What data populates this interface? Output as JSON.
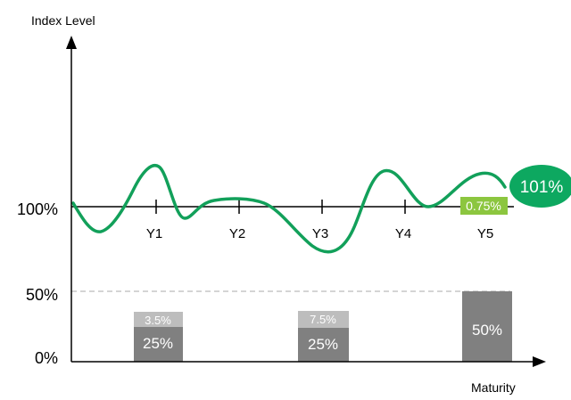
{
  "y_axis_label": "Index Level",
  "x_axis_label": "Maturity",
  "y_ticks": [
    "100%",
    "50%",
    "0%"
  ],
  "years": [
    "Y1",
    "Y2",
    "Y3",
    "Y4",
    "Y5"
  ],
  "bars": [
    {
      "year": "Y1",
      "base_label": "25%",
      "top_label": "3.5%"
    },
    {
      "year": "Y3",
      "base_label": "25%",
      "top_label": "7.5%"
    },
    {
      "year": "Y5",
      "base_label": "50%"
    }
  ],
  "coupon_badge": "0.75%",
  "final_badge": "101%",
  "colors": {
    "curve": "#12A05A",
    "final_badge": "#0DA860",
    "coupon_badge": "#8CC63F",
    "bar_base": "#808080",
    "bar_top": "#BDBDBD",
    "axis": "#000000",
    "dashed": "#BBBBBB"
  }
}
